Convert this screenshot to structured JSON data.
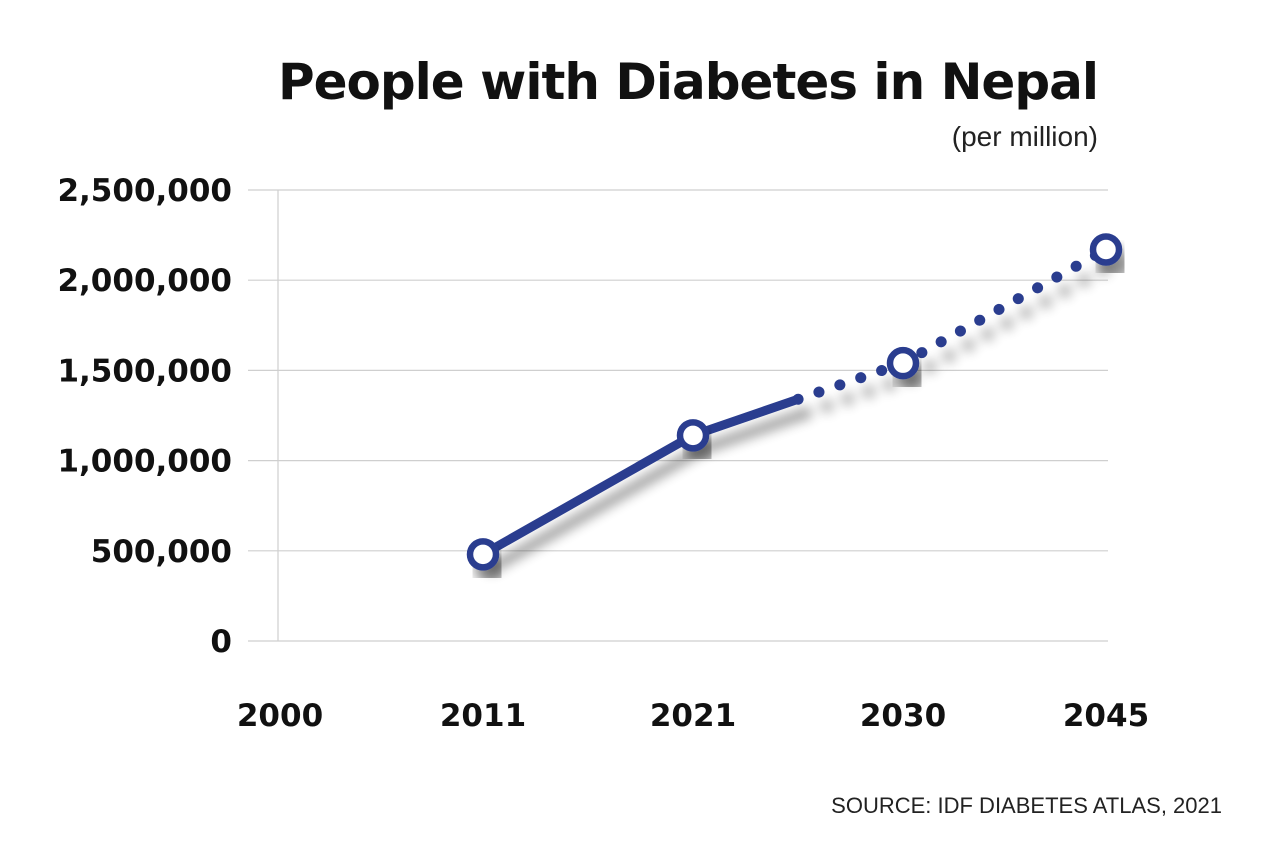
{
  "chart_data": {
    "type": "line",
    "title": "People with Diabetes in Nepal",
    "subtitle": "(per million)",
    "source": "SOURCE: IDF DIABETES ATLAS, 2021",
    "categories": [
      "2000",
      "2011",
      "2021",
      "2030",
      "2045"
    ],
    "y_ticks": [
      {
        "value": 0,
        "label": "0"
      },
      {
        "value": 500000,
        "label": "500,000"
      },
      {
        "value": 1000000,
        "label": "1,000,000"
      },
      {
        "value": 1500000,
        "label": "1,500,000"
      },
      {
        "value": 2000000,
        "label": "2,000,000"
      },
      {
        "value": 2500000,
        "label": "2,500,000"
      }
    ],
    "ylim": [
      0,
      2500000
    ],
    "series": [
      {
        "points": [
          {
            "x": "2011",
            "y": 480000,
            "projected": false
          },
          {
            "x": "2021",
            "y": 1140000,
            "projected": false
          },
          {
            "x": "2030",
            "y": 1540000,
            "projected": true
          },
          {
            "x": "2045",
            "y": 2170000,
            "projected": true
          }
        ]
      }
    ],
    "grid": true,
    "colors": {
      "line": "#2a3d8f",
      "grid": "#cfcfcf",
      "marker_fill": "#ffffff"
    }
  }
}
